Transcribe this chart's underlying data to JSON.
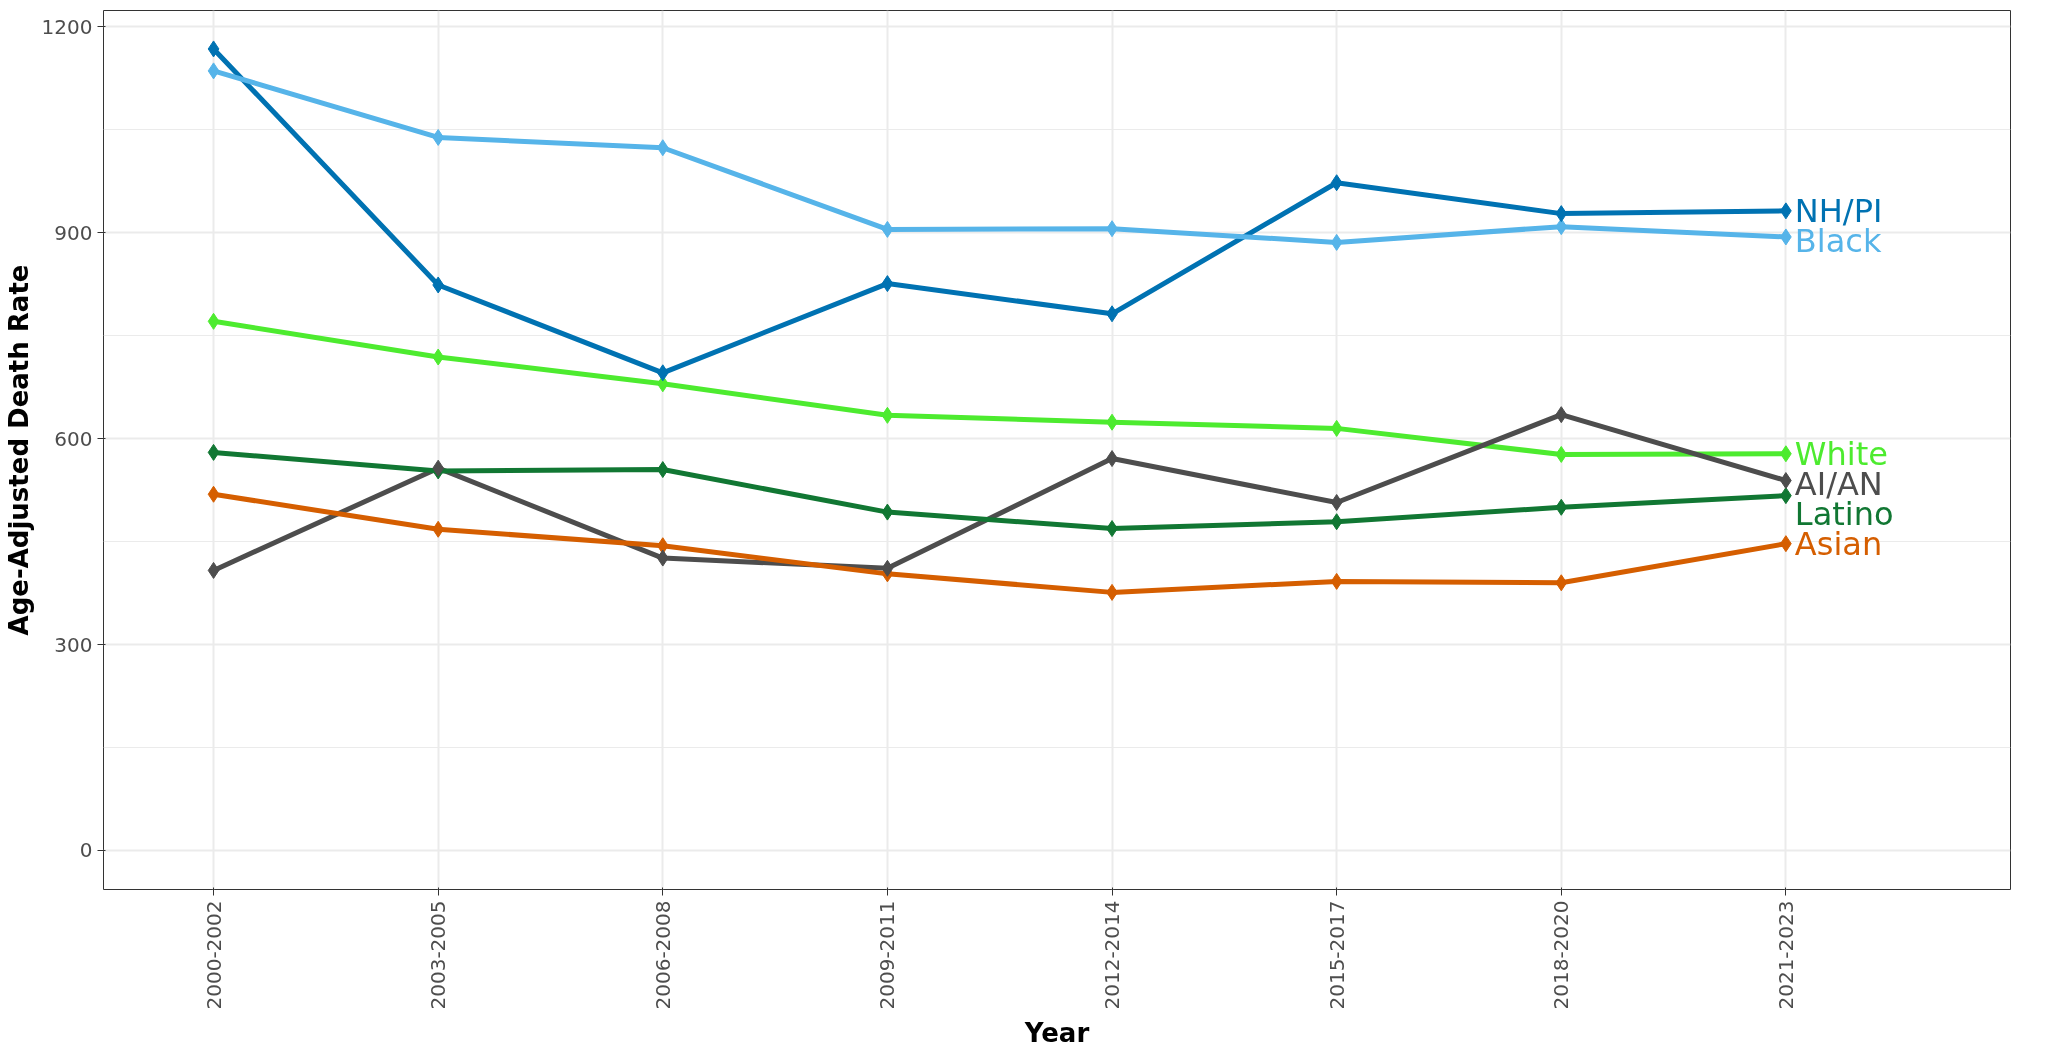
{
  "chart_data": {
    "type": "line",
    "xlabel": "Year",
    "ylabel": "Age-Adjusted Death Rate",
    "categories": [
      "2000-2002",
      "2003-2005",
      "2006-2008",
      "2009-2011",
      "2012-2014",
      "2015-2017",
      "2018-2020",
      "2021-2023"
    ],
    "series": [
      {
        "name": "NH/PI",
        "color": "#0072b2",
        "values": [
          1168,
          824,
          696,
          826,
          782,
          973,
          928,
          932
        ]
      },
      {
        "name": "Black",
        "color": "#56b4e9",
        "values": [
          1136,
          1039,
          1024,
          905,
          906,
          886,
          909,
          894
        ]
      },
      {
        "name": "White",
        "color": "#4deb2f",
        "values": [
          771,
          719,
          680,
          634,
          624,
          615,
          577,
          578
        ]
      },
      {
        "name": "AI/AN",
        "color": "#4d4d4d",
        "values": [
          408,
          557,
          426,
          411,
          571,
          507,
          635,
          539
        ]
      },
      {
        "name": "Latino",
        "color": "#117733",
        "values": [
          580,
          553,
          555,
          493,
          469,
          479,
          500,
          517
        ]
      },
      {
        "name": "Asian",
        "color": "#d55e00",
        "values": [
          519,
          468,
          444,
          403,
          376,
          392,
          390,
          447
        ]
      }
    ],
    "ylim": [
      -57,
      1224
    ],
    "yticks": [
      0,
      300,
      600,
      900,
      1200
    ],
    "grid": true,
    "marker": "diamond",
    "line_style": "solid"
  }
}
